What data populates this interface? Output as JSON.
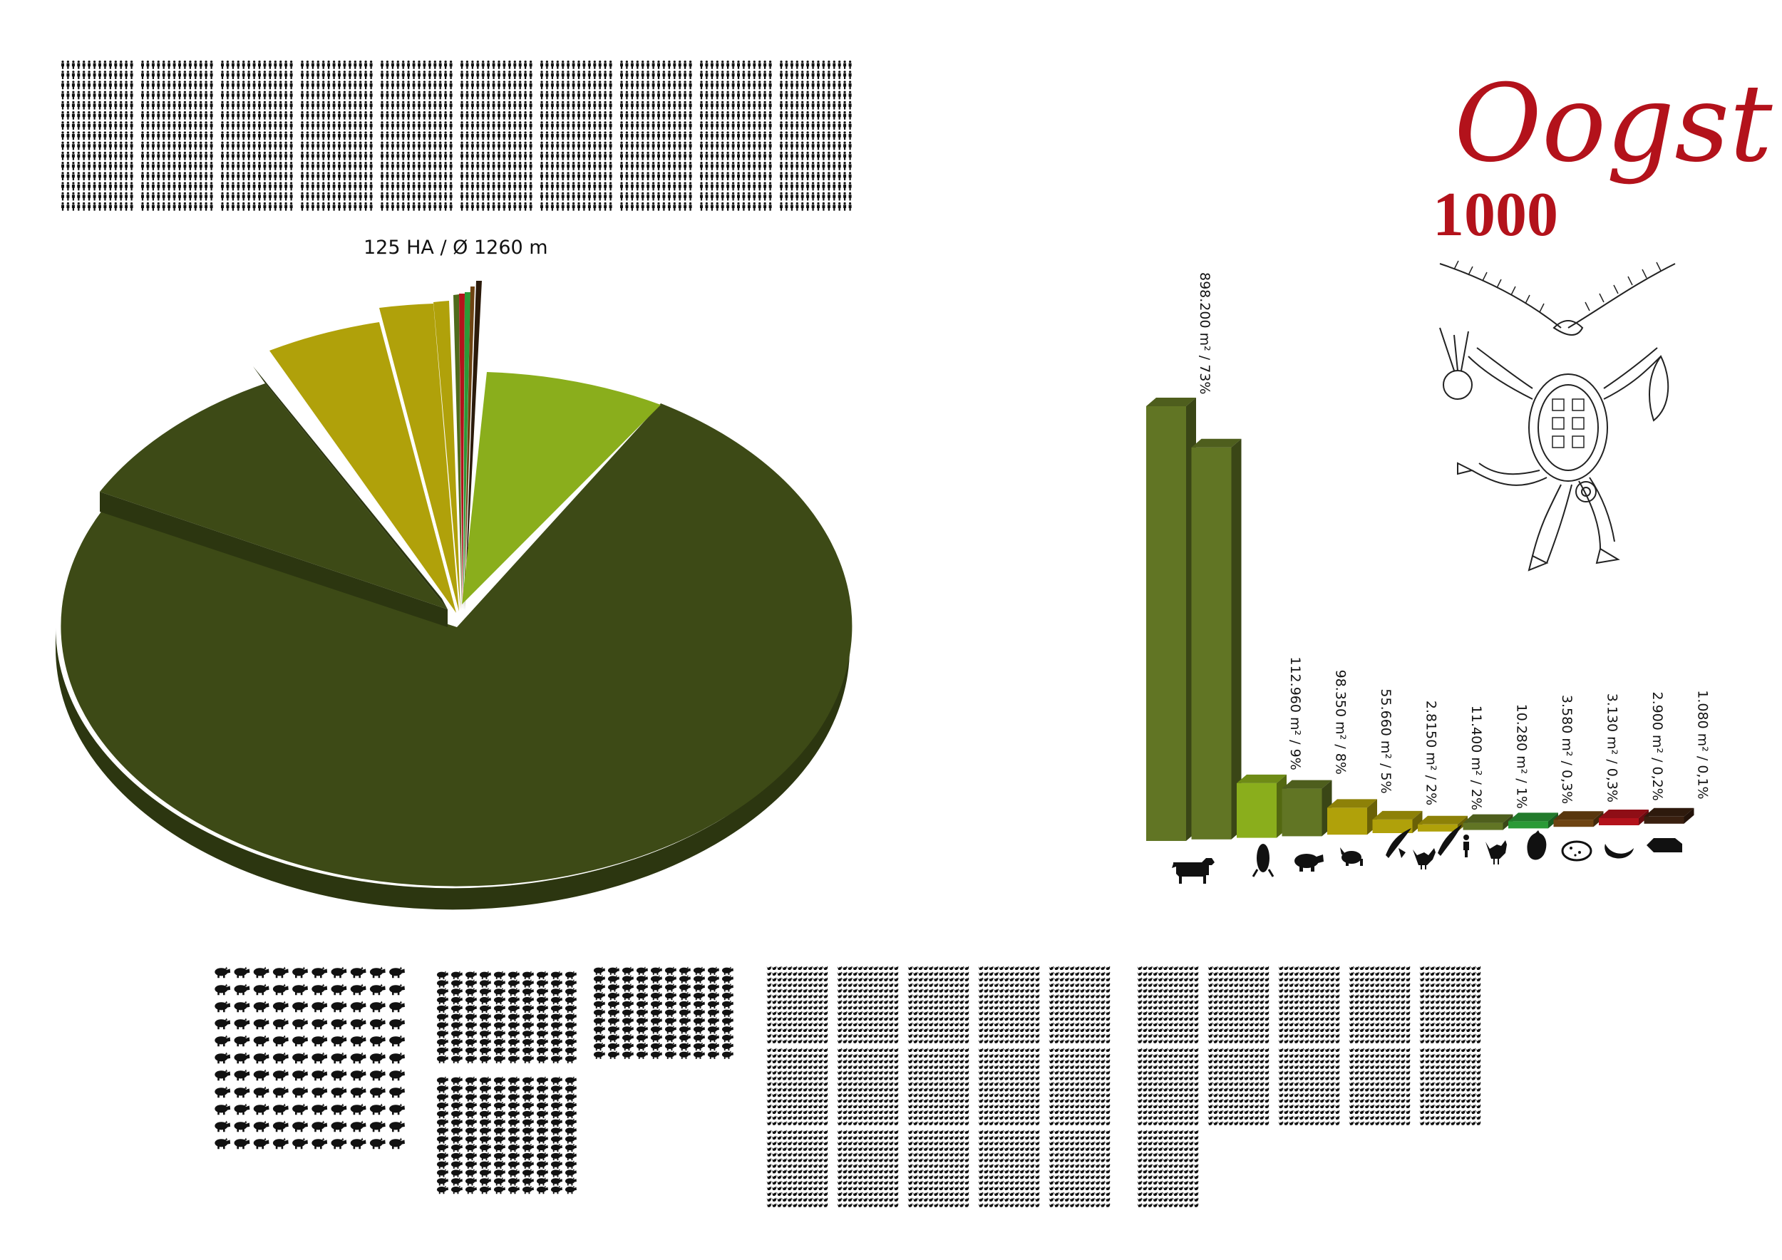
{
  "colors": {
    "pie_main": "#3d4a16",
    "pie_main_side": "#2c3610",
    "accent_red": "#b3121b",
    "icon": "#111111"
  },
  "pie": {
    "caption": "125 HA  /  Ø 1260 m",
    "slices": [
      {
        "name": "cattle",
        "value": 73,
        "color": "#3d4a16"
      },
      {
        "name": "maize",
        "value": 9,
        "color": "#8aae1c"
      },
      {
        "name": "pigs",
        "value": 8,
        "color": "#3d4a16"
      },
      {
        "name": "sheep",
        "value": 5,
        "color": "#b0a10a"
      },
      {
        "name": "grain",
        "value": 2,
        "color": "#b0a10a"
      },
      {
        "name": "wheat",
        "value": 2,
        "color": "#b0a10a"
      },
      {
        "name": "chicken",
        "value": 1,
        "color": "#4f6b1c"
      },
      {
        "name": "peppers",
        "value": 0.3,
        "color": "#2a9a37"
      },
      {
        "name": "potatoes",
        "value": 0.3,
        "color": "#6e4412"
      },
      {
        "name": "beans",
        "value": 0.2,
        "color": "#b3121b"
      },
      {
        "name": "bread",
        "value": 0.1,
        "color": "#3a2010"
      }
    ]
  },
  "chart_data": {
    "type": "bar",
    "categories": [
      "cattle-icon",
      "maize-icon",
      "pig-icon",
      "sheep-icon",
      "grain-icon",
      "chicken-icon",
      "wheat-farmer-icon",
      "hen-icon",
      "pepper-icon",
      "potato-icon",
      "bean-icon",
      "bread-icon"
    ],
    "values": [
      898200,
      810000,
      112960,
      98350,
      55660,
      28150,
      11400,
      10280,
      3580,
      3130,
      2900,
      1080
    ],
    "ylim": [
      0,
      898200
    ],
    "labels": [
      "898.200 m² / 73%",
      "",
      "112.960 m² / 9%",
      "98.350 m² / 8%",
      "55.660 m² / 5%",
      "2.8150 m² / 2%",
      "11.400 m² / 2%",
      "10.280 m² / 1%",
      "3.580 m² / 0,3%",
      "3.130 m² / 0,3%",
      "2.900 m² / 0,2%",
      "1.080 m² / 0,1%"
    ],
    "colors": [
      "#617524",
      "#617524",
      "#8aae1c",
      "#617524",
      "#b0a10a",
      "#b0a10a",
      "#b0a10a",
      "#617524",
      "#2a9a37",
      "#6e4412",
      "#b3121b",
      "#3a2010"
    ],
    "grid": false,
    "legend": "none"
  },
  "logo": {
    "word": "Oogst",
    "number": "1000"
  },
  "people_grid": {
    "blocks": 10,
    "rows": 15,
    "cols": 14,
    "icon": "person-icon"
  },
  "pig_blocks": {
    "icon": "pig-icon"
  },
  "chicken_blocks": {
    "icon": "chicken-icon"
  }
}
